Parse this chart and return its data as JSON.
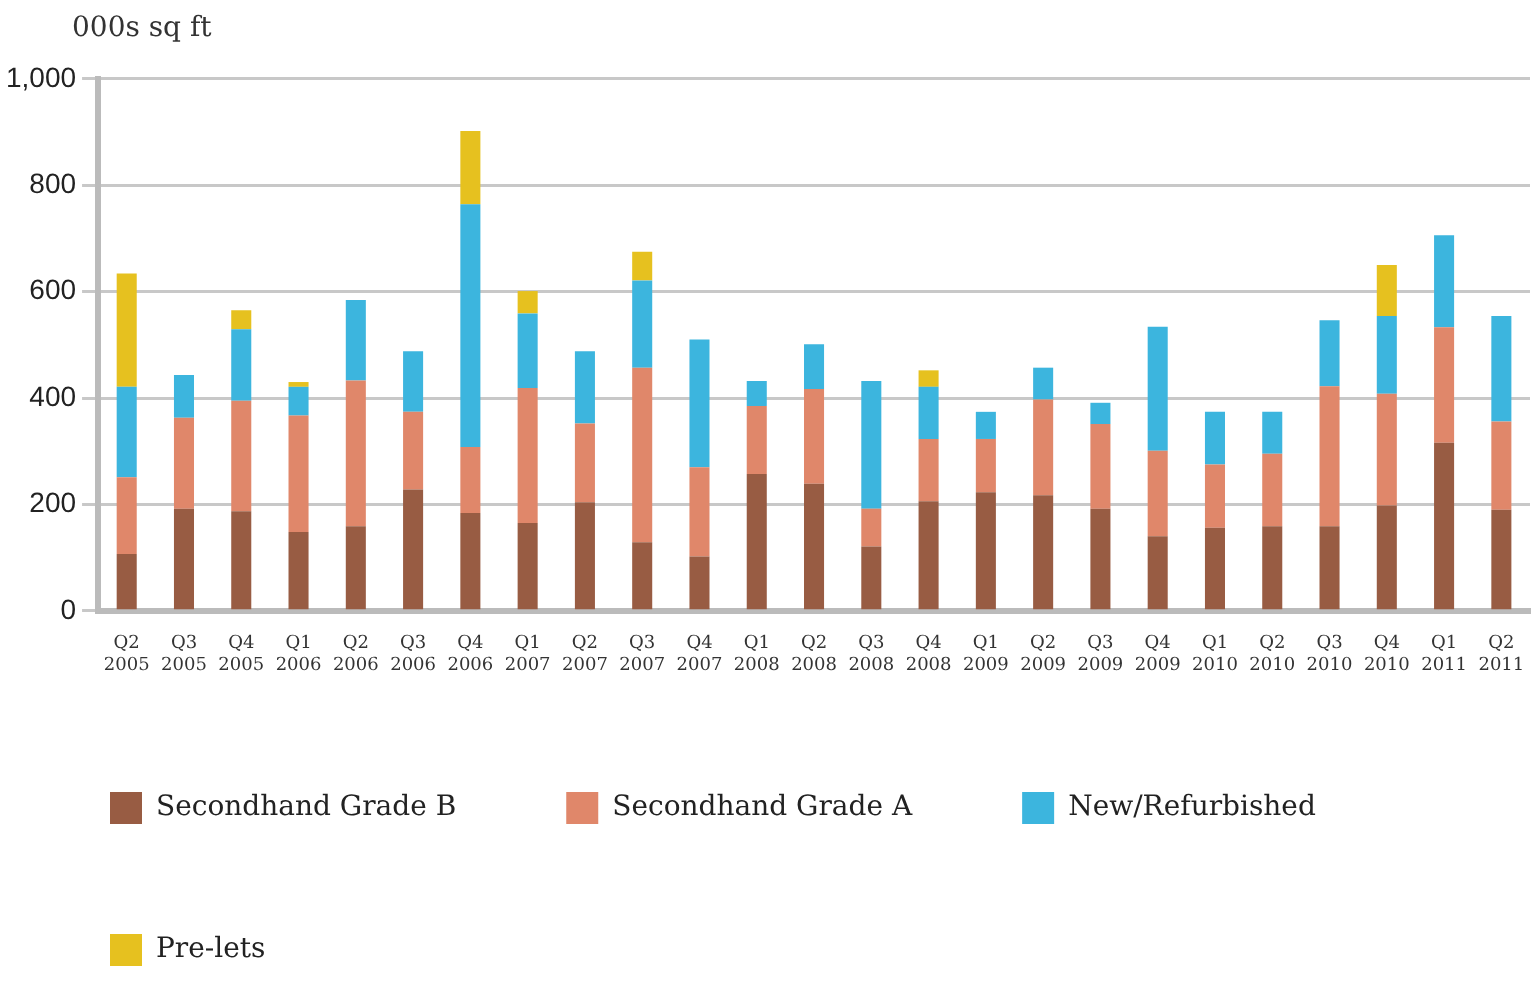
{
  "chart_data": {
    "type": "bar",
    "stacked": true,
    "ylabel": "000s sq ft",
    "categories": [
      "Q2 2005",
      "Q3 2005",
      "Q4 2005",
      "Q1 2006",
      "Q2 2006",
      "Q3 2006",
      "Q4 2006",
      "Q1 2007",
      "Q2 2007",
      "Q3 2007",
      "Q4 2007",
      "Q1 2008",
      "Q2 2008",
      "Q3 2008",
      "Q4 2008",
      "Q1 2009",
      "Q2 2009",
      "Q3 2009",
      "Q4 2009",
      "Q1 2010",
      "Q2 2010",
      "Q3 2010",
      "Q4 2010",
      "Q1 2011",
      "Q2 2011"
    ],
    "series": [
      {
        "name": "Secondhand Grade B",
        "color": "#985c43",
        "values": [
          107,
          192,
          187,
          148,
          159,
          228,
          184,
          165,
          204,
          129,
          102,
          257,
          239,
          121,
          206,
          223,
          217,
          192,
          140,
          156,
          159,
          159,
          198,
          316,
          190
        ]
      },
      {
        "name": "Secondhand Grade A",
        "color": "#e0876a",
        "values": [
          144,
          171,
          208,
          219,
          274,
          146,
          124,
          254,
          148,
          328,
          168,
          128,
          178,
          71,
          117,
          100,
          180,
          159,
          161,
          119,
          136,
          263,
          210,
          217,
          166
        ]
      },
      {
        "name": "New/Refurbished",
        "color": "#3cb5de",
        "values": [
          170,
          80,
          134,
          54,
          151,
          114,
          456,
          140,
          136,
          164,
          240,
          47,
          84,
          240,
          98,
          51,
          60,
          40,
          233,
          99,
          79,
          124,
          146,
          173,
          198
        ]
      },
      {
        "name": "Pre-lets",
        "color": "#e6c11f",
        "values": [
          213,
          null,
          36,
          9,
          null,
          null,
          138,
          42,
          null,
          54,
          null,
          null,
          null,
          null,
          31,
          null,
          null,
          null,
          null,
          null,
          null,
          null,
          96,
          null,
          null
        ]
      }
    ],
    "ylim": [
      0,
      1000
    ],
    "yticks": [
      0,
      {
        "value": 200,
        "label": "200"
      },
      {
        "value": 400,
        "label": "400"
      },
      {
        "value": 600,
        "label": "600"
      },
      {
        "value": 800,
        "label": "800"
      },
      {
        "value": 1000,
        "label": "1,000"
      }
    ],
    "grid": "y",
    "legend": "bottom"
  }
}
